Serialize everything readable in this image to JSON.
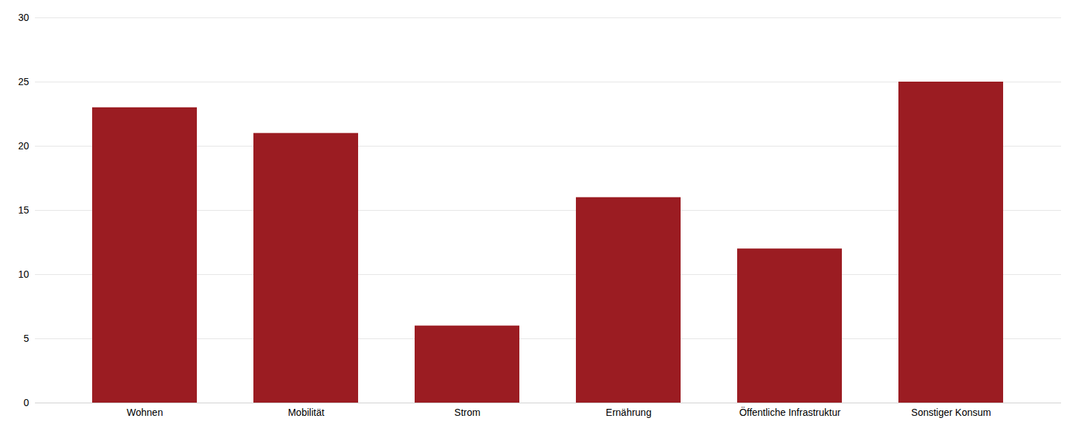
{
  "chart_data": {
    "type": "bar",
    "categories": [
      "Wohnen",
      "Mobilität",
      "Strom",
      "Ernährung",
      "Öffentliche Infrastruktur",
      "Sonstiger Konsum"
    ],
    "values": [
      23,
      21,
      6,
      16,
      12,
      25
    ],
    "color": "#9B1C22",
    "ylim": [
      0,
      30
    ],
    "yticks": [
      0,
      5,
      10,
      15,
      20,
      25,
      30
    ],
    "grid": true
  }
}
